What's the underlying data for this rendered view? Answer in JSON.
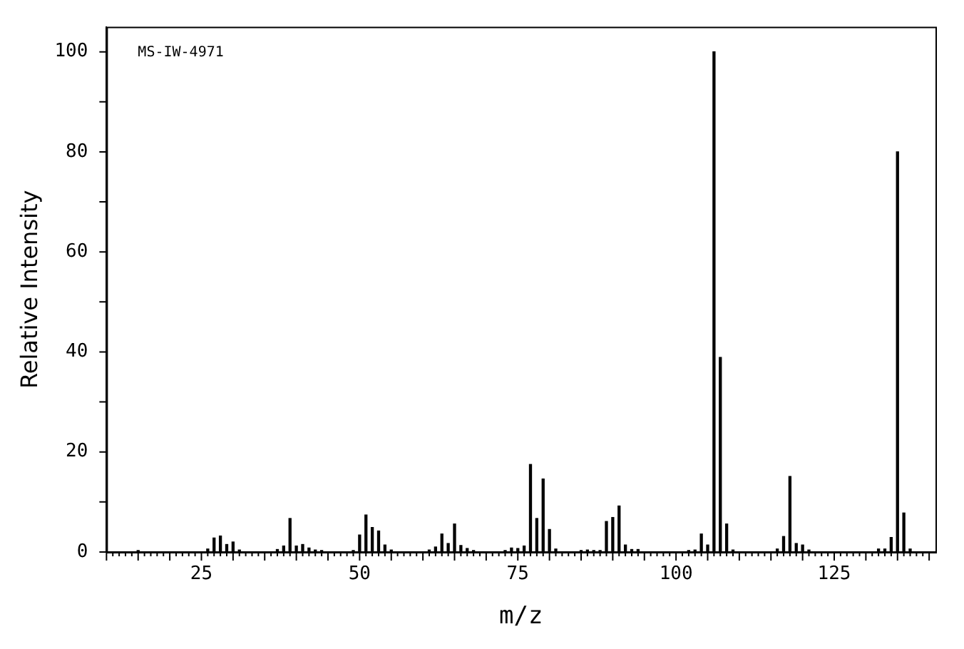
{
  "chart_data": {
    "type": "bar",
    "xlabel": "m/z",
    "ylabel": "Relative Intensity",
    "annotations": [
      "MS-IW-4971"
    ],
    "x": [
      15,
      26,
      27,
      28,
      29,
      30,
      31,
      37,
      38,
      39,
      40,
      41,
      42,
      43,
      44,
      49,
      50,
      51,
      52,
      53,
      54,
      55,
      61,
      62,
      63,
      64,
      65,
      66,
      67,
      68,
      73,
      74,
      75,
      76,
      77,
      78,
      79,
      80,
      81,
      85,
      86,
      87,
      88,
      89,
      90,
      91,
      92,
      93,
      94,
      102,
      103,
      104,
      105,
      106,
      107,
      108,
      109,
      116,
      117,
      118,
      119,
      120,
      121,
      132,
      133,
      134,
      135,
      136,
      137
    ],
    "values": [
      0.3,
      0.6,
      2.8,
      3.2,
      1.5,
      2.0,
      0.4,
      0.5,
      1.2,
      6.7,
      1.2,
      1.5,
      0.8,
      0.4,
      0.3,
      0.3,
      3.4,
      7.4,
      4.9,
      4.2,
      1.4,
      0.4,
      0.4,
      1.0,
      3.6,
      1.7,
      5.6,
      1.3,
      0.7,
      0.3,
      0.3,
      0.8,
      0.7,
      1.2,
      17.5,
      6.7,
      14.6,
      4.5,
      0.6,
      0.3,
      0.4,
      0.3,
      0.3,
      6.1,
      6.9,
      9.2,
      1.4,
      0.5,
      0.5,
      0.3,
      0.4,
      3.6,
      1.4,
      100,
      38.9,
      5.6,
      0.4,
      0.6,
      3.1,
      15.1,
      1.7,
      1.4,
      0.4,
      0.6,
      0.6,
      2.9,
      80,
      7.8,
      0.6
    ],
    "color": "#000000",
    "xlim": [
      10,
      141
    ],
    "xticks": [
      25,
      50,
      75,
      100,
      125
    ],
    "ylim": [
      0,
      105
    ],
    "yticks": [
      0,
      20,
      40,
      60,
      80,
      100
    ],
    "grid": false,
    "legend": false
  }
}
